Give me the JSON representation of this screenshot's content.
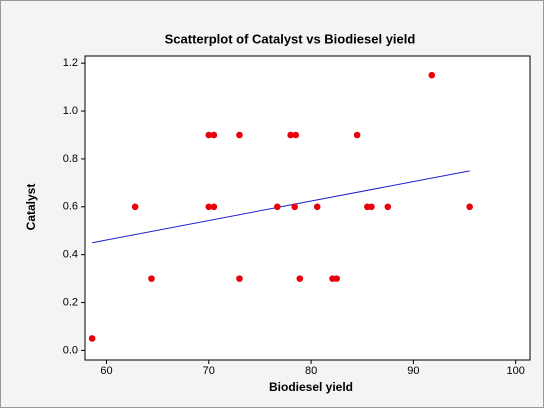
{
  "chart_data": {
    "type": "scatter",
    "title": "Scatterplot of Catalyst vs Biodiesel yield",
    "x_label": "Biodiesel yield",
    "y_label": "Catalyst",
    "color": "#e8000b",
    "x": [
      58.6,
      62.8,
      64.4,
      70.0,
      70.5,
      70.0,
      70.5,
      73.0,
      73.0,
      76.7,
      78.0,
      78.5,
      78.4,
      78.9,
      80.6,
      82.1,
      82.5,
      84.5,
      85.5,
      85.9,
      87.5,
      91.8,
      95.5
    ],
    "values": [
      0.05,
      0.6,
      0.3,
      0.9,
      0.9,
      0.6,
      0.6,
      0.9,
      0.3,
      0.6,
      0.9,
      0.9,
      0.6,
      0.3,
      0.6,
      0.3,
      0.3,
      0.9,
      0.6,
      0.6,
      0.6,
      1.15,
      0.6
    ],
    "fit_line": {
      "color": "#1f1fd0",
      "x": [
        58.6,
        95.5
      ],
      "y": [
        0.45,
        0.75
      ]
    },
    "xlim": [
      57.9,
      101.4
    ],
    "xticks": [
      60,
      70,
      80,
      90,
      100
    ],
    "ylim": [
      -0.04,
      1.23
    ],
    "yticks": [
      {
        "value": 0,
        "label": "0.0"
      },
      0.2,
      0.4,
      0.6,
      0.8,
      {
        "value": 1,
        "label": "1.0"
      },
      1.2
    ]
  }
}
